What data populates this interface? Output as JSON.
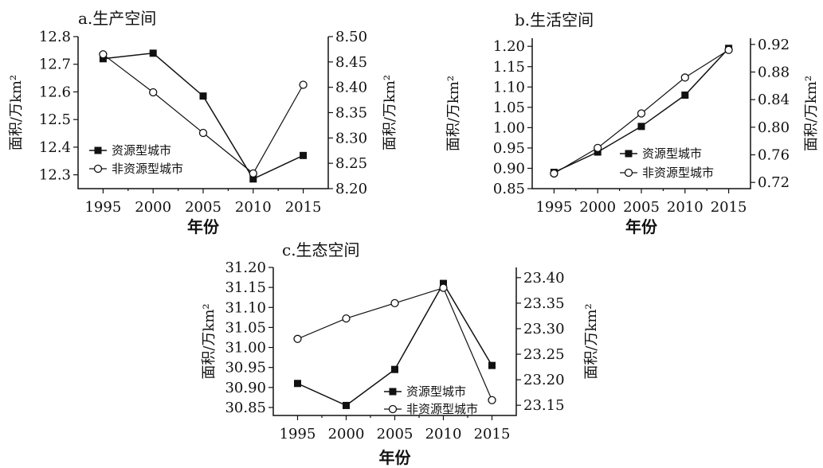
{
  "chart_data": [
    {
      "type": "line",
      "title": "a.生产空间",
      "xlabel": "年份",
      "ylabel_left": "面积/万km²",
      "ylabel_right": "面积/万km²",
      "x": [
        1995,
        2000,
        2005,
        2010,
        2015
      ],
      "x_ticks": [
        "1995",
        "2000",
        "2005",
        "2010",
        "2015"
      ],
      "ylim_left": [
        12.25,
        12.8
      ],
      "ylim_right": [
        8.2,
        8.5
      ],
      "y_ticks_left": [
        "12.3",
        "12.4",
        "12.5",
        "12.6",
        "12.7",
        "12.8"
      ],
      "y_ticks_right": [
        "8.20",
        "8.25",
        "8.30",
        "8.35",
        "8.40",
        "8.45",
        "8.50"
      ],
      "legend_position": "lower-left",
      "series": [
        {
          "name": "资源型城市",
          "axis": "left",
          "marker": "filled-square",
          "values": [
            12.72,
            12.74,
            12.585,
            12.285,
            12.37
          ]
        },
        {
          "name": "非资源型城市",
          "axis": "right",
          "marker": "open-circle",
          "values": [
            8.465,
            8.39,
            8.31,
            8.23,
            8.405
          ]
        }
      ]
    },
    {
      "type": "line",
      "title": "b.生活空间",
      "xlabel": "年份",
      "ylabel_left": "面积/万km²",
      "ylabel_right": "面积/万km²",
      "x": [
        1995,
        2000,
        2005,
        2010,
        2015
      ],
      "x_ticks": [
        "1995",
        "2000",
        "2005",
        "2010",
        "2015"
      ],
      "ylim_left": [
        0.85,
        1.22
      ],
      "ylim_right": [
        0.711,
        0.929
      ],
      "y_ticks_left": [
        "0.85",
        "0.90",
        "0.95",
        "1.00",
        "1.05",
        "1.10",
        "1.15",
        "1.20"
      ],
      "y_ticks_right": [
        "0.72",
        "0.76",
        "0.80",
        "0.84",
        "0.88",
        "0.92"
      ],
      "legend_position": "lower-right",
      "series": [
        {
          "name": "资源型城市",
          "axis": "left",
          "marker": "filled-square",
          "values": [
            0.89,
            0.94,
            1.003,
            1.08,
            1.195
          ]
        },
        {
          "name": "非资源型城市",
          "axis": "right",
          "marker": "open-circle",
          "values": [
            0.733,
            0.77,
            0.82,
            0.872,
            0.912
          ]
        }
      ]
    },
    {
      "type": "line",
      "title": "c.生态空间",
      "xlabel": "年份",
      "ylabel_left": "面积/万km²",
      "ylabel_right": "面积/万km²",
      "x": [
        1995,
        2000,
        2005,
        2010,
        2015
      ],
      "x_ticks": [
        "1995",
        "2000",
        "2005",
        "2010",
        "2015"
      ],
      "ylim_left": [
        30.83,
        31.2
      ],
      "ylim_right": [
        23.13,
        23.42
      ],
      "y_ticks_left": [
        "30.85",
        "30.90",
        "30.95",
        "31.00",
        "31.05",
        "31.10",
        "31.15",
        "31.20"
      ],
      "y_ticks_right": [
        "23.15",
        "23.20",
        "23.25",
        "23.30",
        "23.35",
        "23.40"
      ],
      "legend_position": "lower-left",
      "series": [
        {
          "name": "资源型城市",
          "axis": "left",
          "marker": "filled-square",
          "values": [
            30.91,
            30.855,
            30.945,
            31.16,
            30.955
          ]
        },
        {
          "name": "非资源型城市",
          "axis": "right",
          "marker": "open-circle",
          "values": [
            23.28,
            23.32,
            23.35,
            23.38,
            23.16
          ]
        }
      ]
    }
  ]
}
